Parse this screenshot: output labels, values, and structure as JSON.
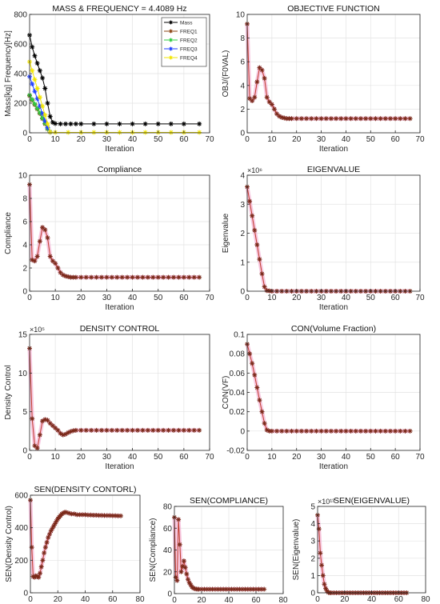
{
  "chart_data": [
    {
      "type": "line",
      "title": "MASS & FREQUENCY = 4.4089 Hz",
      "xlabel": "Iteration",
      "ylabel": "Mass[kg] Frequency[Hz]",
      "xlim": [
        0,
        70
      ],
      "ylim": [
        0,
        800
      ],
      "xticks": [
        0,
        10,
        20,
        30,
        40,
        50,
        60,
        70
      ],
      "yticks": [
        0,
        200,
        400,
        600,
        800
      ],
      "grid": true,
      "legend": "top-right",
      "series": [
        {
          "name": "Mass",
          "color": "#000000",
          "marker": "star",
          "x": [
            0,
            1,
            2,
            3,
            4,
            5,
            6,
            7,
            8,
            9,
            10,
            12,
            14,
            16,
            18,
            20,
            25,
            30,
            35,
            40,
            45,
            50,
            55,
            60,
            66
          ],
          "y": [
            660,
            580,
            520,
            470,
            420,
            370,
            300,
            200,
            110,
            70,
            62,
            60,
            60,
            60,
            60,
            60,
            60,
            60,
            60,
            60,
            60,
            60,
            60,
            60,
            60
          ]
        },
        {
          "name": "FREQ1",
          "color": "#8b4513",
          "marker": "star",
          "x": [
            0,
            1,
            2,
            3,
            4,
            5,
            6,
            7,
            8
          ],
          "y": [
            250,
            220,
            190,
            160,
            130,
            95,
            60,
            25,
            5
          ]
        },
        {
          "name": "FREQ2",
          "color": "#2ecc40",
          "marker": "star",
          "x": [
            0,
            1,
            2,
            3,
            4,
            5,
            6,
            7,
            8
          ],
          "y": [
            255,
            225,
            195,
            165,
            135,
            100,
            65,
            28,
            5
          ]
        },
        {
          "name": "FREQ3",
          "color": "#1f3fff",
          "marker": "star",
          "x": [
            0,
            1,
            2,
            3,
            4,
            5,
            6,
            7,
            8
          ],
          "y": [
            380,
            330,
            280,
            230,
            180,
            130,
            80,
            35,
            5
          ]
        },
        {
          "name": "FREQ4",
          "color": "#f2e600",
          "marker": "star",
          "x": [
            0,
            1,
            2,
            3,
            4,
            5,
            6,
            7,
            8,
            10,
            15,
            20,
            25,
            30,
            35,
            40,
            45,
            50,
            55,
            60,
            66
          ],
          "y": [
            480,
            420,
            360,
            300,
            240,
            180,
            120,
            60,
            5,
            3,
            3,
            3,
            3,
            3,
            3,
            3,
            3,
            3,
            3,
            3,
            3
          ]
        }
      ]
    },
    {
      "type": "line",
      "title": "OBJECTIVE FUNCTION",
      "xlabel": "Iteration",
      "ylabel": "OBJ/(F0VAL)",
      "xlim": [
        0,
        70
      ],
      "ylim": [
        0,
        10
      ],
      "xticks": [
        0,
        10,
        20,
        30,
        40,
        50,
        60,
        70
      ],
      "yticks": [
        0,
        2,
        4,
        6,
        8,
        10
      ],
      "grid": true,
      "series": [
        {
          "color": "#c0392b",
          "marker": "star",
          "x": [
            0,
            1,
            2,
            3,
            4,
            5,
            6,
            7,
            8,
            9,
            10,
            11,
            12,
            13,
            14,
            15,
            16,
            17,
            18,
            20,
            22,
            24,
            26,
            28,
            30,
            32,
            34,
            36,
            38,
            40,
            42,
            44,
            46,
            48,
            50,
            52,
            54,
            56,
            58,
            60,
            62,
            64,
            66
          ],
          "y": [
            9.2,
            2.9,
            2.7,
            3.0,
            4.3,
            5.5,
            5.3,
            4.6,
            3.0,
            2.6,
            2.4,
            2.0,
            1.6,
            1.4,
            1.3,
            1.25,
            1.2,
            1.2,
            1.2,
            1.2,
            1.2,
            1.2,
            1.2,
            1.2,
            1.2,
            1.2,
            1.2,
            1.2,
            1.2,
            1.2,
            1.2,
            1.2,
            1.2,
            1.2,
            1.2,
            1.2,
            1.2,
            1.2,
            1.2,
            1.2,
            1.2,
            1.2,
            1.2
          ]
        }
      ]
    },
    {
      "type": "line",
      "title": "Compliance",
      "xlabel": "Iteration",
      "ylabel": "Compliance",
      "xlim": [
        0,
        70
      ],
      "ylim": [
        0,
        10
      ],
      "xticks": [
        0,
        10,
        20,
        30,
        40,
        50,
        60,
        70
      ],
      "yticks": [
        0,
        2,
        4,
        6,
        8,
        10
      ],
      "grid": true,
      "series": [
        {
          "color": "#c0392b",
          "marker": "star",
          "x": [
            0,
            1,
            2,
            3,
            4,
            5,
            6,
            7,
            8,
            9,
            10,
            11,
            12,
            13,
            14,
            15,
            16,
            17,
            18,
            20,
            22,
            24,
            26,
            28,
            30,
            32,
            34,
            36,
            38,
            40,
            42,
            44,
            46,
            48,
            50,
            52,
            54,
            56,
            58,
            60,
            62,
            64,
            66
          ],
          "y": [
            9.2,
            2.7,
            2.6,
            3.0,
            4.3,
            5.5,
            5.3,
            4.6,
            3.0,
            2.6,
            2.4,
            2.0,
            1.6,
            1.4,
            1.3,
            1.25,
            1.2,
            1.2,
            1.2,
            1.2,
            1.2,
            1.2,
            1.2,
            1.2,
            1.2,
            1.2,
            1.2,
            1.2,
            1.2,
            1.2,
            1.2,
            1.2,
            1.2,
            1.2,
            1.2,
            1.2,
            1.2,
            1.2,
            1.2,
            1.2,
            1.2,
            1.2,
            1.2
          ]
        }
      ]
    },
    {
      "type": "line",
      "title": "EIGENVALUE",
      "xlabel": "Iteration",
      "ylabel": "Eigenvalue",
      "exponent": "×10⁶",
      "xlim": [
        0,
        70
      ],
      "ylim": [
        0,
        4
      ],
      "xticks": [
        0,
        10,
        20,
        30,
        40,
        50,
        60,
        70
      ],
      "yticks": [
        0,
        1,
        2,
        3,
        4
      ],
      "grid": true,
      "series": [
        {
          "color": "#c0392b",
          "marker": "star",
          "x": [
            0,
            1,
            2,
            3,
            4,
            5,
            6,
            7,
            8,
            9,
            10,
            12,
            14,
            16,
            18,
            20,
            22,
            24,
            26,
            28,
            30,
            32,
            34,
            36,
            38,
            40,
            42,
            44,
            46,
            48,
            50,
            52,
            54,
            56,
            58,
            60,
            62,
            64,
            66
          ],
          "y": [
            3.6,
            3.1,
            2.6,
            2.1,
            1.6,
            1.1,
            0.6,
            0.15,
            0.02,
            0.01,
            0,
            0,
            0,
            0,
            0,
            0,
            0,
            0,
            0,
            0,
            0,
            0,
            0,
            0,
            0,
            0,
            0,
            0,
            0,
            0,
            0,
            0,
            0,
            0,
            0,
            0,
            0,
            0,
            0
          ]
        }
      ]
    },
    {
      "type": "line",
      "title": "DENSITY CONTROL",
      "xlabel": "Iteration",
      "ylabel": "Density Control",
      "exponent": "×10⁵",
      "xlim": [
        0,
        70
      ],
      "ylim": [
        0,
        15
      ],
      "xticks": [
        0,
        10,
        20,
        30,
        40,
        50,
        60,
        70
      ],
      "yticks": [
        0,
        5,
        10,
        15
      ],
      "grid": true,
      "series": [
        {
          "color": "#c0392b",
          "marker": "star",
          "x": [
            0,
            1,
            2,
            3,
            4,
            5,
            6,
            7,
            8,
            9,
            10,
            11,
            12,
            13,
            14,
            15,
            16,
            17,
            18,
            20,
            22,
            24,
            26,
            28,
            30,
            32,
            34,
            36,
            38,
            40,
            42,
            44,
            46,
            48,
            50,
            52,
            54,
            56,
            58,
            60,
            62,
            64,
            66
          ],
          "y": [
            13.2,
            4.1,
            0.6,
            0.3,
            2.0,
            3.8,
            4.0,
            3.9,
            3.5,
            3.2,
            2.9,
            2.6,
            2.2,
            2.0,
            2.1,
            2.3,
            2.45,
            2.55,
            2.6,
            2.6,
            2.6,
            2.6,
            2.6,
            2.6,
            2.6,
            2.6,
            2.6,
            2.6,
            2.6,
            2.6,
            2.6,
            2.6,
            2.6,
            2.6,
            2.6,
            2.6,
            2.6,
            2.6,
            2.6,
            2.6,
            2.6,
            2.6,
            2.6
          ]
        }
      ]
    },
    {
      "type": "line",
      "title": "CON(Volume Fraction)",
      "xlabel": "Iteration",
      "ylabel": "CON(VF)",
      "xlim": [
        0,
        70
      ],
      "ylim": [
        -0.02,
        0.1
      ],
      "xticks": [
        0,
        10,
        20,
        30,
        40,
        50,
        60,
        70
      ],
      "yticks": [
        -0.02,
        0,
        0.02,
        0.04,
        0.06,
        0.08,
        0.1
      ],
      "grid": true,
      "series": [
        {
          "color": "#c0392b",
          "marker": "star",
          "x": [
            0,
            1,
            2,
            3,
            4,
            5,
            6,
            7,
            8,
            9,
            10,
            12,
            14,
            16,
            18,
            20,
            22,
            24,
            26,
            28,
            30,
            32,
            34,
            36,
            38,
            40,
            42,
            44,
            46,
            48,
            50,
            52,
            54,
            56,
            58,
            60,
            62,
            64,
            66
          ],
          "y": [
            0.09,
            0.08,
            0.07,
            0.058,
            0.045,
            0.032,
            0.02,
            0.008,
            0.001,
            0,
            0,
            0,
            0,
            0,
            0,
            0,
            0,
            0,
            0,
            0,
            0,
            0,
            0,
            0,
            0,
            0,
            0,
            0,
            0,
            0,
            0,
            0,
            0,
            0,
            0,
            0,
            0,
            0,
            0
          ]
        }
      ]
    },
    {
      "type": "line",
      "title": "SEN(DENSITY CONTORL)",
      "xlabel": "Iteration",
      "ylabel": "SEN(Density Control)",
      "xlim": [
        0,
        80
      ],
      "ylim": [
        0,
        600
      ],
      "xticks": [
        0,
        20,
        40,
        60,
        80
      ],
      "yticks": [
        0,
        200,
        400,
        600
      ],
      "grid": true,
      "series": [
        {
          "color": "#c0392b",
          "marker": "star",
          "x": [
            0,
            1,
            2,
            3,
            4,
            5,
            6,
            7,
            8,
            9,
            10,
            11,
            12,
            13,
            14,
            15,
            16,
            17,
            18,
            19,
            20,
            21,
            22,
            23,
            24,
            25,
            26,
            28,
            30,
            32,
            34,
            36,
            38,
            40,
            42,
            44,
            46,
            48,
            50,
            52,
            54,
            56,
            58,
            60,
            62,
            64,
            66
          ],
          "y": [
            570,
            280,
            100,
            95,
            105,
            100,
            95,
            120,
            160,
            200,
            245,
            280,
            310,
            340,
            360,
            380,
            395,
            410,
            425,
            440,
            455,
            465,
            475,
            485,
            490,
            495,
            495,
            490,
            485,
            485,
            480,
            480,
            480,
            480,
            478,
            478,
            477,
            477,
            476,
            476,
            475,
            475,
            475,
            474,
            474,
            473,
            473
          ]
        }
      ]
    },
    {
      "type": "line",
      "title": "SEN(COMPLIANCE)",
      "xlabel": "Iteration",
      "ylabel": "SEN(Compliance)",
      "xlim": [
        0,
        80
      ],
      "ylim": [
        0,
        80
      ],
      "xticks": [
        0,
        20,
        40,
        60,
        80
      ],
      "yticks": [
        0,
        20,
        40,
        60,
        80
      ],
      "grid": true,
      "series": [
        {
          "color": "#c0392b",
          "marker": "star",
          "x": [
            0,
            1,
            2,
            3,
            4,
            5,
            6,
            7,
            8,
            9,
            10,
            11,
            12,
            13,
            14,
            15,
            16,
            17,
            18,
            20,
            22,
            24,
            26,
            28,
            30,
            32,
            34,
            36,
            38,
            40,
            42,
            44,
            46,
            48,
            50,
            52,
            54,
            56,
            58,
            60,
            62,
            64,
            66
          ],
          "y": [
            70,
            15,
            12,
            68,
            45,
            20,
            25,
            30,
            24,
            18,
            13,
            10,
            8,
            6,
            5,
            4.5,
            4.2,
            4,
            4,
            4,
            4,
            4,
            4,
            4,
            4,
            4,
            4,
            4,
            4,
            4,
            4,
            4,
            4,
            4,
            4,
            4,
            4,
            4,
            4,
            4,
            4,
            4,
            4
          ]
        }
      ]
    },
    {
      "type": "line",
      "title": "SEN(EIGENVALUE)",
      "xlabel": "Iteration",
      "ylabel": "SEN(Eigenvalue)",
      "exponent": "×10¹³",
      "xlim": [
        0,
        80
      ],
      "ylim": [
        0,
        5
      ],
      "xticks": [
        0,
        20,
        40,
        60,
        80
      ],
      "yticks": [
        0,
        1,
        2,
        3,
        4,
        5
      ],
      "grid": true,
      "series": [
        {
          "color": "#c0392b",
          "marker": "star",
          "x": [
            0,
            1,
            2,
            3,
            4,
            5,
            6,
            7,
            8,
            9,
            10,
            12,
            14,
            16,
            18,
            20,
            22,
            24,
            26,
            28,
            30,
            32,
            34,
            36,
            38,
            40,
            42,
            44,
            46,
            48,
            50,
            52,
            54,
            56,
            58,
            60,
            62,
            64,
            66
          ],
          "y": [
            4.5,
            3.7,
            2.3,
            1.6,
            1.0,
            0.5,
            0.25,
            0.1,
            0.02,
            0,
            0,
            0,
            0,
            0,
            0,
            0,
            0,
            0,
            0,
            0,
            0,
            0,
            0,
            0,
            0,
            0,
            0,
            0,
            0,
            0,
            0,
            0,
            0,
            0,
            0,
            0,
            0,
            0,
            0
          ]
        }
      ]
    }
  ]
}
